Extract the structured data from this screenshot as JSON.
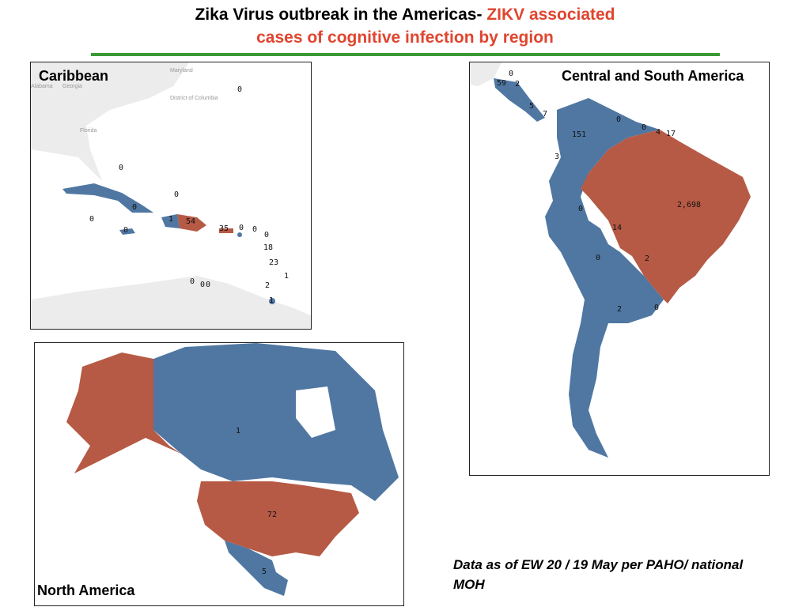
{
  "header": {
    "title_black": "Zika Virus outbreak in the Americas- ",
    "title_red": "ZIKV associated",
    "title_red_line2": "cases of cognitive infection by region"
  },
  "panels": [
    {
      "title": "Caribbean",
      "basemap_labels": [
        "Maryland",
        "Alabama",
        "Georgia",
        "District of Columbia",
        "Florida"
      ],
      "labels": [
        0,
        0,
        0,
        0,
        0,
        1,
        54,
        0,
        35,
        0,
        0,
        0,
        18,
        23,
        1,
        0,
        0,
        0,
        2,
        1
      ]
    },
    {
      "title": "Central and South America",
      "labels": [
        0,
        59,
        2,
        5,
        7,
        0,
        0,
        4,
        17,
        151,
        3,
        {
          "value": 2698,
          "label": "2,698"
        },
        0,
        14,
        0,
        2,
        2,
        0
      ]
    },
    {
      "title": "North America",
      "labels": [
        1,
        72,
        5
      ]
    }
  ],
  "note": "Data as of EW 20 / 19 May per PAHO/ national MOH"
}
